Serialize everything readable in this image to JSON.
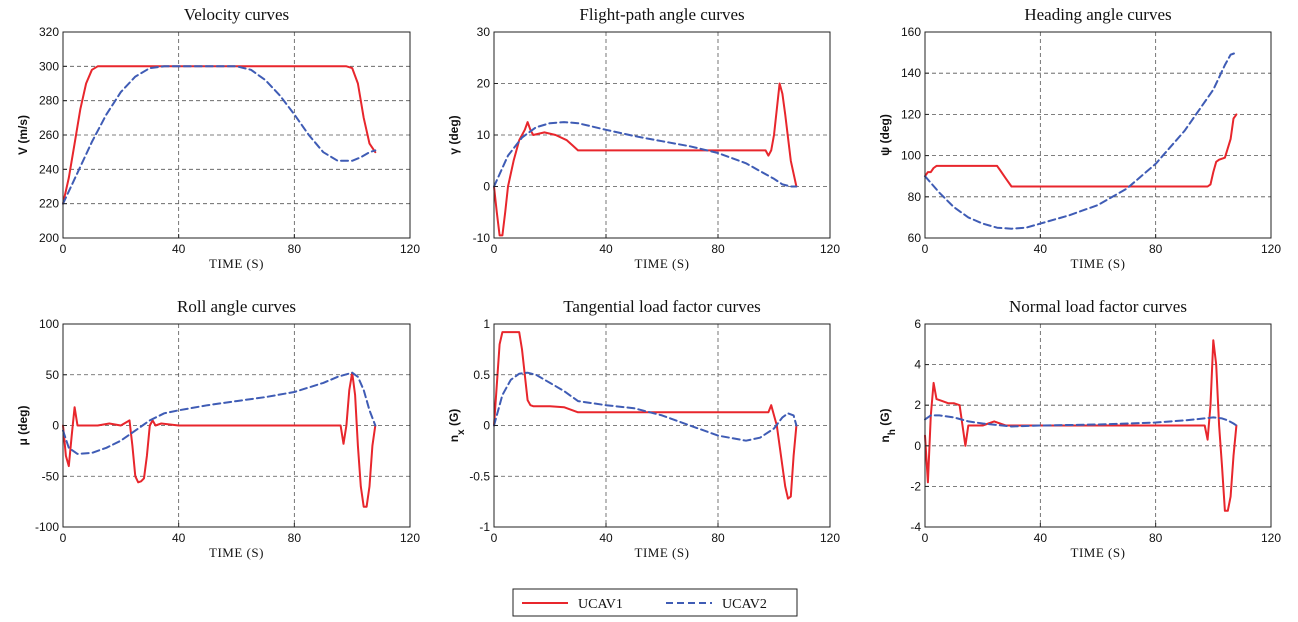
{
  "legend": {
    "entries": [
      {
        "name": "UCAV1",
        "color": "#e8262c",
        "dash": "solid"
      },
      {
        "name": "UCAV2",
        "color": "#3f5cb5",
        "dash": "dashed"
      }
    ]
  },
  "chart_data": [
    {
      "type": "line",
      "title": "Velocity curves",
      "xlabel": "TIME (S)",
      "ylabel": "V (m/s)",
      "xlim": [
        0,
        120
      ],
      "ylim": [
        200,
        320
      ],
      "xticks": [
        0,
        40,
        80,
        120
      ],
      "yticks": [
        200,
        220,
        240,
        260,
        280,
        300,
        320
      ],
      "xtick_labels": [
        "0",
        "40",
        "80",
        "120"
      ],
      "ytick_labels": [
        "200",
        "220",
        "240",
        "260",
        "280",
        "300",
        "320"
      ],
      "grid": true,
      "series": [
        {
          "name": "UCAV1",
          "color": "#e8262c",
          "dash": "solid",
          "x": [
            0,
            2,
            4,
            6,
            8,
            10,
            12,
            98,
            100,
            102,
            104,
            106,
            108
          ],
          "y": [
            220,
            235,
            255,
            275,
            290,
            298,
            300,
            300,
            299,
            290,
            270,
            255,
            250
          ]
        },
        {
          "name": "UCAV2",
          "color": "#3f5cb5",
          "dash": "dashed",
          "x": [
            0,
            5,
            10,
            15,
            20,
            25,
            30,
            35,
            60,
            65,
            70,
            75,
            80,
            85,
            90,
            95,
            100,
            103,
            106,
            108
          ],
          "y": [
            220,
            238,
            256,
            272,
            285,
            294,
            299,
            300,
            300,
            298,
            292,
            283,
            272,
            260,
            250,
            245,
            245,
            247,
            250,
            251
          ]
        }
      ]
    },
    {
      "type": "line",
      "title": "Flight-path angle curves",
      "xlabel": "TIME (S)",
      "ylabel": "γ (deg)",
      "xlim": [
        0,
        120
      ],
      "ylim": [
        -10,
        30
      ],
      "xticks": [
        0,
        40,
        80,
        120
      ],
      "yticks": [
        -10,
        0,
        10,
        20,
        30
      ],
      "xtick_labels": [
        "0",
        "40",
        "80",
        "120"
      ],
      "ytick_labels": [
        "-10",
        "0",
        "10",
        "20",
        "30"
      ],
      "grid": true,
      "series": [
        {
          "name": "UCAV1",
          "color": "#e8262c",
          "dash": "solid",
          "x": [
            0,
            1,
            2,
            3,
            4,
            5,
            7,
            9,
            11,
            12,
            13,
            14,
            18,
            22,
            26,
            28,
            30,
            97,
            98,
            99,
            100,
            101,
            102,
            103,
            104,
            106,
            108
          ],
          "y": [
            0,
            -5,
            -9.5,
            -9.5,
            -5,
            0,
            5,
            9,
            11,
            12.5,
            11,
            10,
            10.5,
            10,
            9,
            8,
            7,
            7,
            6,
            7,
            10,
            15,
            20,
            18,
            14,
            5,
            0
          ]
        },
        {
          "name": "UCAV2",
          "color": "#3f5cb5",
          "dash": "dashed",
          "x": [
            0,
            5,
            10,
            15,
            20,
            25,
            30,
            40,
            50,
            60,
            70,
            80,
            90,
            95,
            100,
            103,
            106,
            108
          ],
          "y": [
            0,
            6,
            9.5,
            11.5,
            12.3,
            12.5,
            12.3,
            11,
            9.8,
            8.8,
            7.8,
            6.5,
            4.5,
            3,
            1.5,
            0.4,
            0,
            0
          ]
        }
      ]
    },
    {
      "type": "line",
      "title": "Heading angle curves",
      "xlabel": "TIME (S)",
      "ylabel": "ψ (deg)",
      "xlim": [
        0,
        120
      ],
      "ylim": [
        60,
        160
      ],
      "xticks": [
        0,
        40,
        80,
        120
      ],
      "yticks": [
        60,
        80,
        100,
        120,
        140,
        160
      ],
      "xtick_labels": [
        "0",
        "40",
        "80",
        "120"
      ],
      "ytick_labels": [
        "60",
        "80",
        "100",
        "120",
        "140",
        "160"
      ],
      "grid": true,
      "series": [
        {
          "name": "UCAV1",
          "color": "#e8262c",
          "dash": "solid",
          "x": [
            0,
            1,
            2,
            3,
            4,
            5,
            25,
            26,
            28,
            30,
            98,
            99,
            100,
            101,
            102,
            104,
            106,
            107,
            108
          ],
          "y": [
            90,
            92,
            92,
            94,
            95,
            95,
            95,
            93,
            89,
            85,
            85,
            86,
            92,
            97,
            98,
            99,
            108,
            118,
            120
          ]
        },
        {
          "name": "UCAV2",
          "color": "#3f5cb5",
          "dash": "dashed",
          "x": [
            0,
            5,
            10,
            15,
            20,
            25,
            30,
            35,
            40,
            50,
            60,
            70,
            80,
            90,
            100,
            104,
            106,
            108
          ],
          "y": [
            90,
            82,
            75,
            70,
            67,
            65,
            64.5,
            65,
            67,
            71,
            76,
            84,
            96,
            112,
            132,
            144,
            149,
            150
          ]
        }
      ]
    },
    {
      "type": "line",
      "title": "Roll angle curves",
      "xlabel": "TIME (S)",
      "ylabel": "μ (deg)",
      "xlim": [
        0,
        120
      ],
      "ylim": [
        -100,
        100
      ],
      "xticks": [
        0,
        40,
        80,
        120
      ],
      "yticks": [
        -100,
        -50,
        0,
        50,
        100
      ],
      "xtick_labels": [
        "0",
        "40",
        "80",
        "120"
      ],
      "ytick_labels": [
        "-100",
        "-50",
        "0",
        "50",
        "100"
      ],
      "grid": true,
      "series": [
        {
          "name": "UCAV1",
          "color": "#e8262c",
          "dash": "solid",
          "x": [
            0,
            1,
            2,
            3,
            4,
            5,
            8,
            12,
            16,
            20,
            23,
            24,
            25,
            26,
            27,
            28,
            29,
            30,
            31,
            32,
            34,
            40,
            96,
            97,
            98,
            99,
            100,
            101,
            102,
            103,
            104,
            105,
            106,
            107,
            108
          ],
          "y": [
            0,
            -30,
            -40,
            -10,
            18,
            0,
            0,
            0,
            2,
            0,
            5,
            -20,
            -50,
            -56,
            -55,
            -52,
            -30,
            0,
            5,
            0,
            2,
            0,
            0,
            -18,
            0,
            35,
            52,
            30,
            -20,
            -60,
            -80,
            -80,
            -60,
            -20,
            0
          ]
        },
        {
          "name": "UCAV2",
          "color": "#3f5cb5",
          "dash": "dashed",
          "x": [
            0,
            2,
            5,
            10,
            15,
            20,
            25,
            30,
            35,
            40,
            50,
            60,
            70,
            80,
            90,
            95,
            100,
            102,
            104,
            106,
            108
          ],
          "y": [
            -5,
            -22,
            -28,
            -27,
            -22,
            -15,
            -5,
            5,
            12,
            15,
            20,
            24,
            28,
            33,
            42,
            48,
            52,
            48,
            35,
            15,
            0
          ]
        }
      ]
    },
    {
      "type": "line",
      "title": "Tangential load factor curves",
      "xlabel": "TIME (S)",
      "ylabel": "n_x (G)",
      "xlim": [
        0,
        120
      ],
      "ylim": [
        -1,
        1
      ],
      "xticks": [
        0,
        40,
        80,
        120
      ],
      "yticks": [
        -1,
        -0.5,
        0,
        0.5,
        1
      ],
      "xtick_labels": [
        "0",
        "40",
        "80",
        "120"
      ],
      "ytick_labels": [
        "-1",
        "-0.5",
        "0",
        "0.5",
        "1"
      ],
      "grid": true,
      "series": [
        {
          "name": "UCAV1",
          "color": "#e8262c",
          "dash": "solid",
          "x": [
            0,
            1,
            2,
            3,
            4,
            9,
            10,
            11,
            12,
            13,
            14,
            20,
            25,
            30,
            98,
            99,
            100,
            101,
            102,
            103,
            104,
            105,
            106,
            107,
            108
          ],
          "y": [
            0,
            0.4,
            0.8,
            0.92,
            0.92,
            0.92,
            0.75,
            0.5,
            0.25,
            0.2,
            0.19,
            0.19,
            0.18,
            0.13,
            0.13,
            0.2,
            0.1,
            0,
            -0.2,
            -0.4,
            -0.6,
            -0.72,
            -0.7,
            -0.3,
            0
          ]
        },
        {
          "name": "UCAV2",
          "color": "#3f5cb5",
          "dash": "dashed",
          "x": [
            0,
            3,
            6,
            9,
            12,
            15,
            20,
            25,
            30,
            40,
            50,
            60,
            70,
            80,
            90,
            95,
            100,
            103,
            105,
            107,
            108
          ],
          "y": [
            0,
            0.3,
            0.45,
            0.51,
            0.52,
            0.5,
            0.42,
            0.34,
            0.24,
            0.2,
            0.17,
            0.1,
            0,
            -0.1,
            -0.15,
            -0.12,
            -0.03,
            0.08,
            0.12,
            0.1,
            0
          ]
        }
      ]
    },
    {
      "type": "line",
      "title": "Normal load factor curves",
      "xlabel": "TIME (S)",
      "ylabel": "n_h (G)",
      "xlim": [
        0,
        120
      ],
      "ylim": [
        -4,
        6
      ],
      "xticks": [
        0,
        40,
        80,
        120
      ],
      "yticks": [
        -4,
        -2,
        0,
        2,
        4,
        6
      ],
      "xtick_labels": [
        "0",
        "40",
        "80",
        "120"
      ],
      "ytick_labels": [
        "-4",
        "-2",
        "0",
        "2",
        "4",
        "6"
      ],
      "grid": true,
      "series": [
        {
          "name": "UCAV1",
          "color": "#e8262c",
          "dash": "solid",
          "x": [
            0,
            1,
            2,
            3,
            4,
            6,
            8,
            10,
            12,
            13,
            14,
            15,
            16,
            20,
            24,
            28,
            30,
            97,
            98,
            99,
            100,
            101,
            102,
            103,
            104,
            105,
            106,
            107,
            108
          ],
          "y": [
            0.5,
            -1.8,
            1.5,
            3.1,
            2.3,
            2.2,
            2.1,
            2.1,
            2.0,
            1,
            0,
            1,
            1,
            1,
            1.2,
            1,
            1,
            1,
            0.3,
            2,
            5.2,
            4,
            1,
            -1,
            -3.2,
            -3.2,
            -2.5,
            -0.5,
            1
          ]
        },
        {
          "name": "UCAV2",
          "color": "#3f5cb5",
          "dash": "dashed",
          "x": [
            0,
            2,
            5,
            10,
            15,
            20,
            30,
            40,
            60,
            80,
            90,
            95,
            100,
            103,
            105,
            107,
            108
          ],
          "y": [
            1.3,
            1.5,
            1.5,
            1.4,
            1.2,
            1.1,
            0.95,
            1.0,
            1.05,
            1.15,
            1.25,
            1.32,
            1.4,
            1.35,
            1.25,
            1.1,
            1.0
          ]
        }
      ]
    }
  ]
}
